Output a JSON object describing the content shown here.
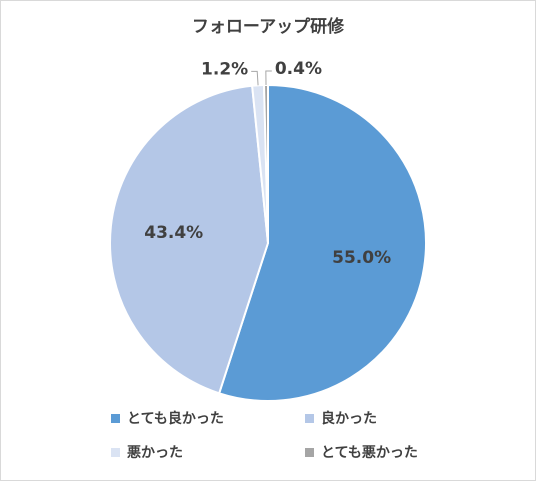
{
  "chart_data": {
    "type": "pie",
    "title": "フォローアップ研修",
    "categories": [
      "とても良かった",
      "良かった",
      "悪かった",
      "とても悪かった"
    ],
    "values": [
      55.0,
      43.4,
      1.2,
      0.4
    ],
    "data_labels": [
      "55.0%",
      "43.4%",
      "1.2%",
      "0.4%"
    ],
    "colors": [
      "#5b9bd5",
      "#b4c7e7",
      "#dae3f3",
      "#a5a5a5"
    ],
    "legend_position": "bottom",
    "start_angle": "12-o'clock, clockwise"
  }
}
